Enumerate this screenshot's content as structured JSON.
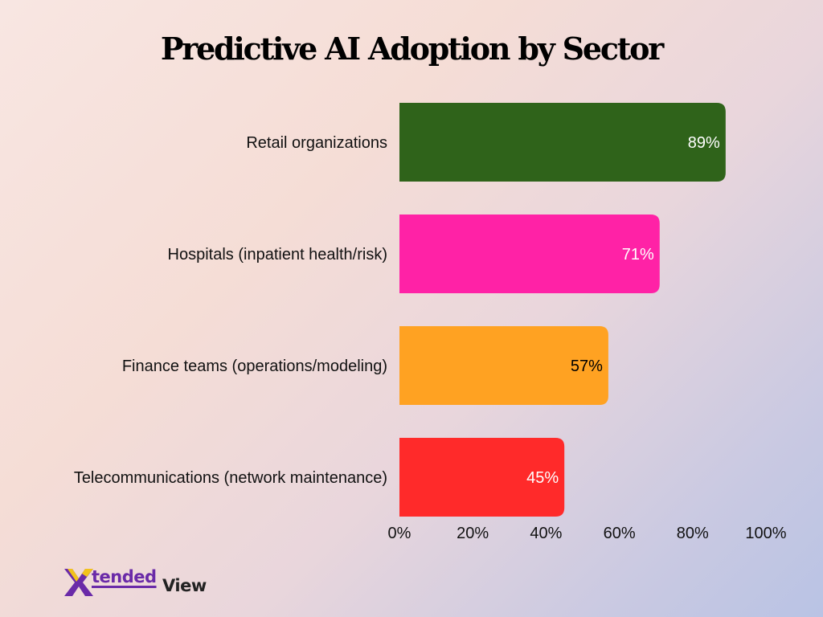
{
  "chart_data": {
    "type": "bar",
    "orientation": "horizontal",
    "title": "Predictive AI Adoption by Sector",
    "categories": [
      "Retail organizations",
      "Hospitals (inpatient health/risk)",
      "Finance teams (operations/modeling)",
      "Telecommunications (network maintenance)"
    ],
    "values": [
      89,
      71,
      57,
      45
    ],
    "value_labels": [
      "89%",
      "71%",
      "57%",
      "45%"
    ],
    "colors": [
      "#2f631a",
      "#ff22a6",
      "#ffa222",
      "#ff2a2a"
    ],
    "label_colors": [
      "#ffffff",
      "#ffffff",
      "#000000",
      "#ffffff"
    ],
    "xlim": [
      0,
      100
    ],
    "x_ticks": [
      0,
      20,
      40,
      60,
      80,
      100
    ],
    "x_tick_labels": [
      "0%",
      "20%",
      "40%",
      "60%",
      "80%",
      "100%"
    ],
    "xlabel": "",
    "ylabel": "",
    "grid": false,
    "legend": "none"
  },
  "logo": {
    "word1": "tended",
    "word2": "View"
  }
}
